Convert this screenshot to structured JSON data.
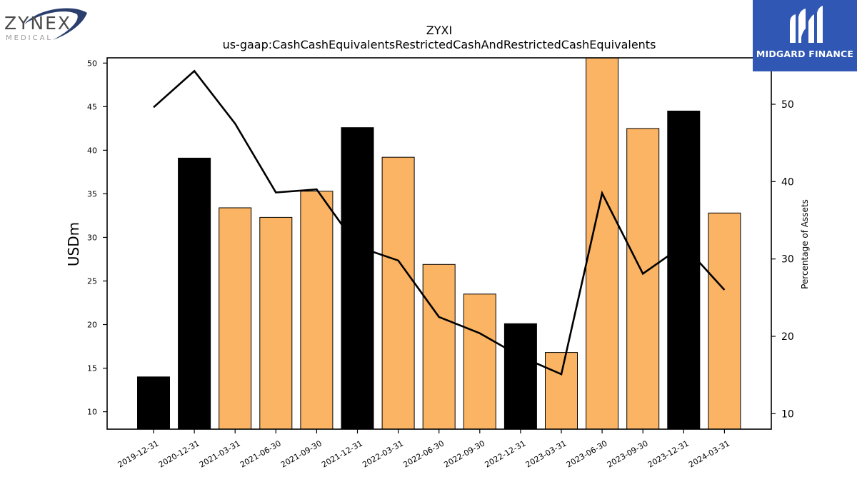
{
  "branding": {
    "left_logo_text": "ZYNEX",
    "left_logo_subtext": "MEDICAL",
    "right_logo_text": "MIDGARD FINANCE",
    "right_logo_bg": "#2f57b3"
  },
  "chart_data": {
    "type": "bar+line",
    "title": "ZYXI",
    "subtitle": "us-gaap:CashCashEquivalentsRestrictedCashAndRestrictedCashEquivalents",
    "ylabel": "USDm",
    "ylabel_right": "Percentage of Assets",
    "categories": [
      "2019-12-31",
      "2020-12-31",
      "2021-03-31",
      "2021-06-30",
      "2021-09-30",
      "2021-12-31",
      "2022-03-31",
      "2022-06-30",
      "2022-09-30",
      "2022-12-31",
      "2023-03-31",
      "2023-06-30",
      "2023-09-30",
      "2023-12-31",
      "2024-03-31"
    ],
    "bars": {
      "values": [
        14.0,
        39.1,
        33.4,
        32.3,
        35.3,
        42.6,
        39.2,
        26.9,
        23.5,
        20.1,
        16.8,
        51.0,
        42.5,
        44.5,
        32.8
      ],
      "colors": [
        "#000000",
        "#000000",
        "#fbb463",
        "#fbb463",
        "#fbb463",
        "#000000",
        "#fbb463",
        "#fbb463",
        "#fbb463",
        "#000000",
        "#fbb463",
        "#fbb463",
        "#fbb463",
        "#000000",
        "#fbb463"
      ]
    },
    "line": {
      "values": [
        49.6,
        54.3,
        47.5,
        38.6,
        39.0,
        31.6,
        29.8,
        22.5,
        20.4,
        17.4,
        15.1,
        38.5,
        28.1,
        31.8,
        26.0
      ],
      "color": "#000000"
    },
    "ylim": [
      8,
      50.6
    ],
    "ylim_right": [
      8,
      56
    ],
    "yticks": [
      10,
      15,
      20,
      25,
      30,
      35,
      40,
      45,
      50
    ],
    "yticks_right": [
      10,
      20,
      30,
      40,
      50
    ],
    "colors": {
      "orange": "#fbb463",
      "black": "#000000"
    }
  }
}
